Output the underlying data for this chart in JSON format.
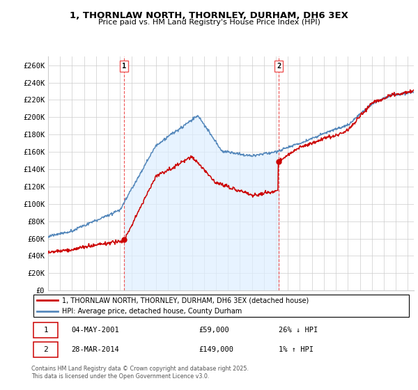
{
  "title": "1, THORNLAW NORTH, THORNLEY, DURHAM, DH6 3EX",
  "subtitle": "Price paid vs. HM Land Registry's House Price Index (HPI)",
  "ylabel_ticks": [
    "£0",
    "£20K",
    "£40K",
    "£60K",
    "£80K",
    "£100K",
    "£120K",
    "£140K",
    "£160K",
    "£180K",
    "£200K",
    "£220K",
    "£240K",
    "£260K"
  ],
  "ytick_values": [
    0,
    20000,
    40000,
    60000,
    80000,
    100000,
    120000,
    140000,
    160000,
    180000,
    200000,
    220000,
    240000,
    260000
  ],
  "ylim": [
    0,
    270000
  ],
  "sale1_x": 2001.34,
  "sale1_price": 59000,
  "sale2_x": 2014.24,
  "sale2_price": 149000,
  "red_color": "#cc0000",
  "blue_color": "#5588bb",
  "fill_color": "#ddeeff",
  "vline_color": "#ee5555",
  "grid_color": "#cccccc",
  "bg_color": "#ffffff",
  "legend_line1": "1, THORNLAW NORTH, THORNLEY, DURHAM, DH6 3EX (detached house)",
  "legend_line2": "HPI: Average price, detached house, County Durham",
  "footer": "Contains HM Land Registry data © Crown copyright and database right 2025.\nThis data is licensed under the Open Government Licence v3.0.",
  "xmin": 1995,
  "xmax": 2025.5
}
